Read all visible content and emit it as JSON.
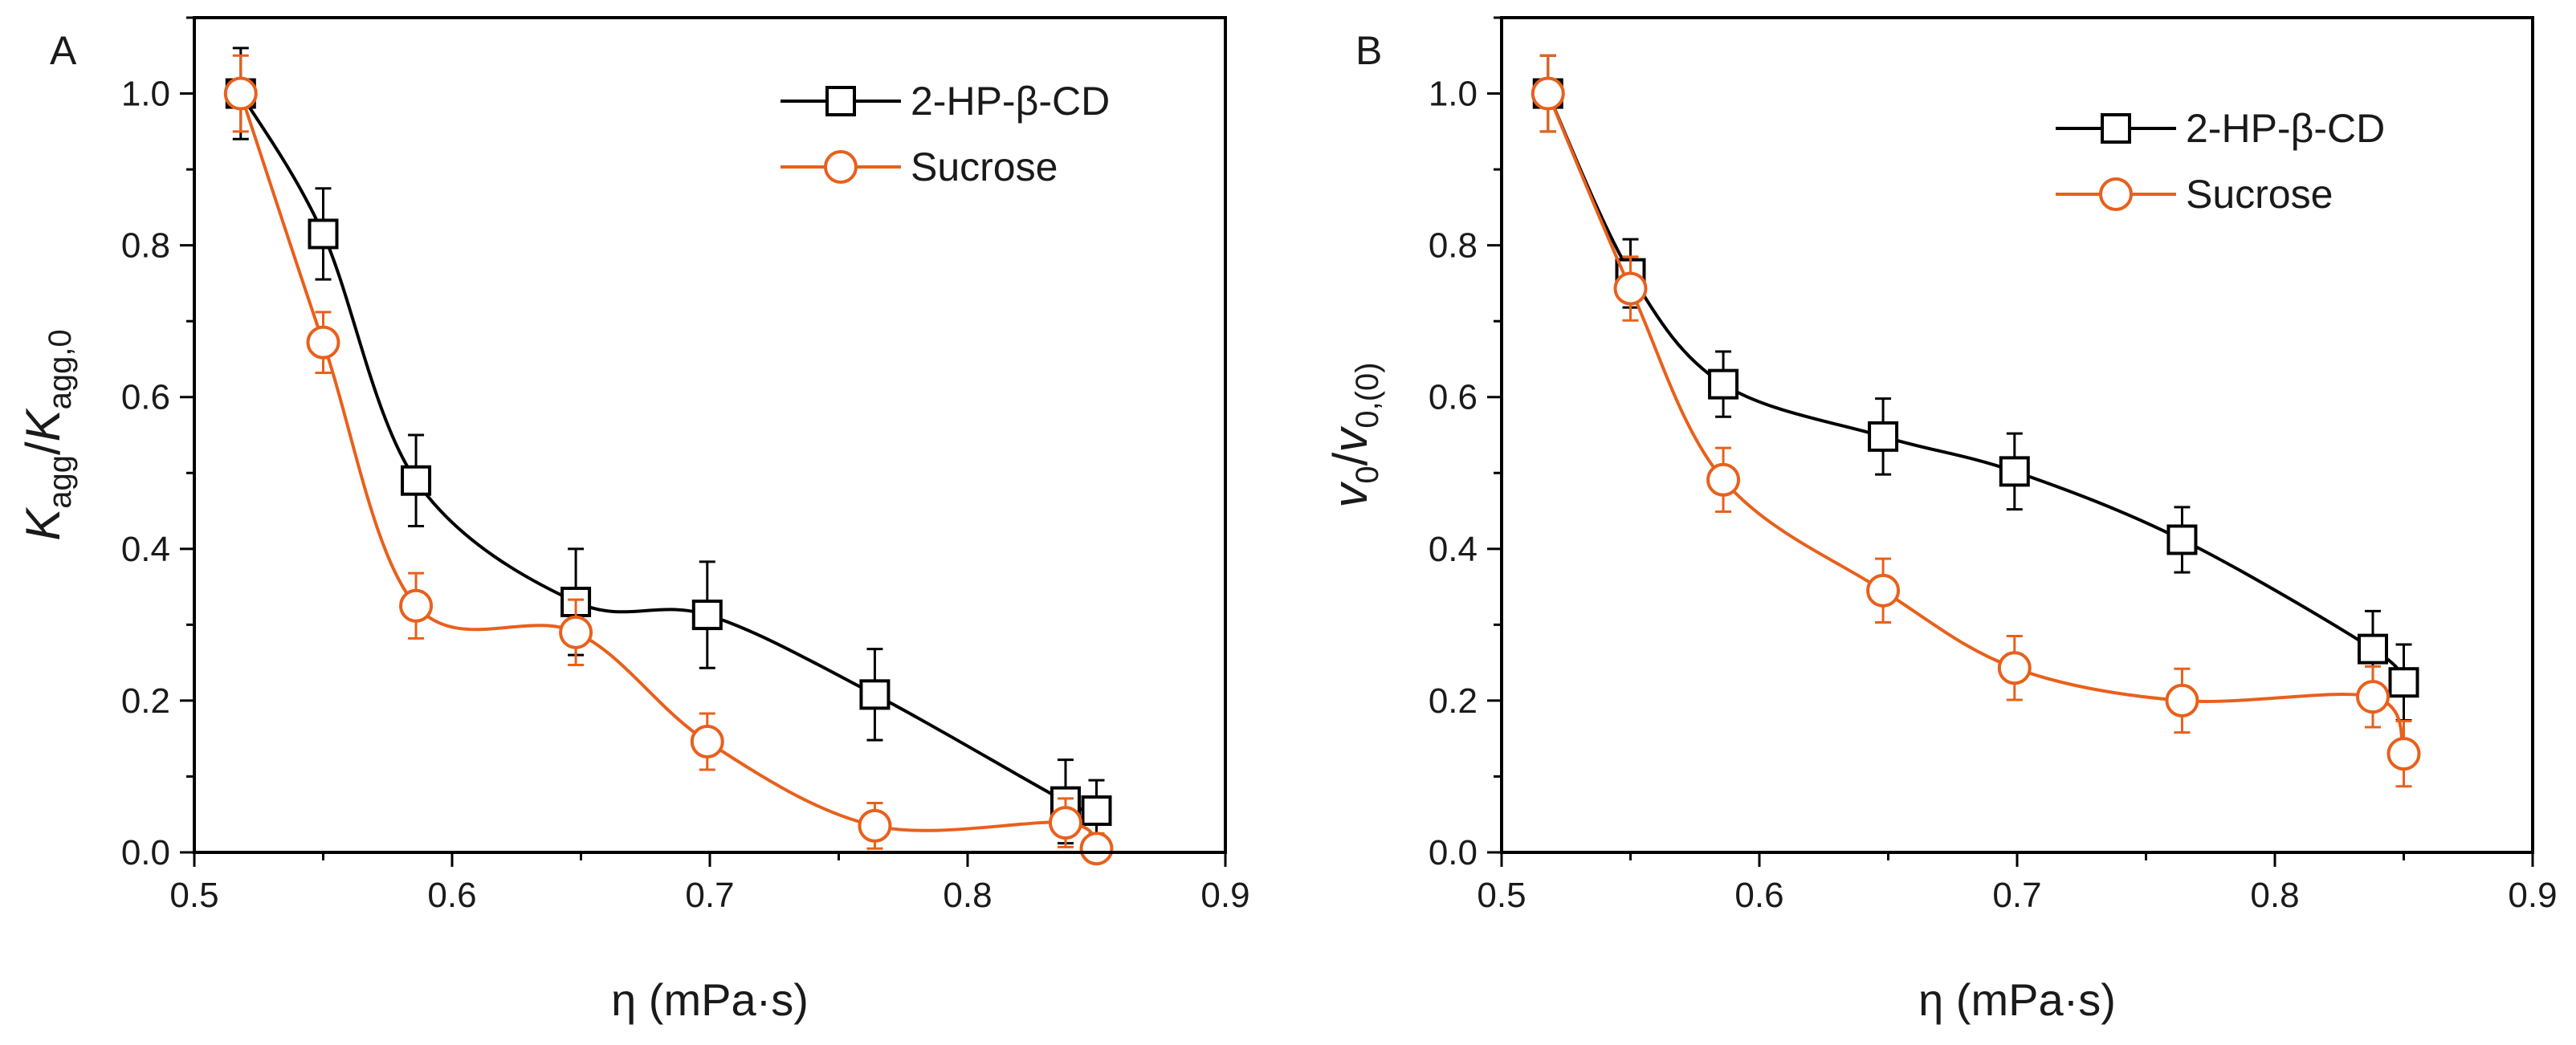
{
  "chart_data": [
    {
      "panel": "A",
      "type": "scatter",
      "title": "",
      "xlabel": "η (mPa·s)",
      "ylabel": {
        "main": "K",
        "sub": "agg",
        "slash": "/",
        "main2": "K",
        "sub2": "agg,0"
      },
      "xlim": [
        0.5,
        0.9
      ],
      "ylim": [
        0.0,
        1.1
      ],
      "xticks": [
        "0.5",
        "0.6",
        "0.7",
        "0.8",
        "0.9"
      ],
      "yticks": [
        "0.0",
        "0.2",
        "0.4",
        "0.6",
        "0.8",
        "1.0"
      ],
      "legend_position": "top-right",
      "series": [
        {
          "name": "2-HP-β-CD",
          "color": "#000000",
          "marker": "square",
          "x": [
            0.518,
            0.55,
            0.586,
            0.648,
            0.699,
            0.764,
            0.838,
            0.85
          ],
          "y": [
            1.0,
            0.815,
            0.49,
            0.33,
            0.313,
            0.208,
            0.067,
            0.055
          ],
          "err": [
            0.06,
            0.06,
            0.06,
            0.07,
            0.07,
            0.06,
            0.055,
            0.04
          ]
        },
        {
          "name": "Sucrose",
          "color": "#e8601c",
          "marker": "circle",
          "x": [
            0.518,
            0.55,
            0.586,
            0.648,
            0.699,
            0.764,
            0.838,
            0.85
          ],
          "y": [
            1.0,
            0.672,
            0.325,
            0.29,
            0.146,
            0.035,
            0.039,
            0.005
          ],
          "err": [
            0.05,
            0.04,
            0.043,
            0.043,
            0.037,
            0.03,
            0.032,
            0.02
          ]
        }
      ]
    },
    {
      "panel": "B",
      "type": "scatter",
      "title": "",
      "xlabel": "η (mPa·s)",
      "ylabel": {
        "main": "v",
        "sub": "0",
        "slash": "/",
        "main2": "v",
        "sub2": "0,(0)"
      },
      "xlim": [
        0.5,
        0.9
      ],
      "ylim": [
        0.0,
        1.1
      ],
      "xticks": [
        "0.5",
        "0.6",
        "0.7",
        "0.8",
        "0.9"
      ],
      "yticks": [
        "0.0",
        "0.2",
        "0.4",
        "0.6",
        "0.8",
        "1.0"
      ],
      "legend_position": "top-right",
      "series": [
        {
          "name": "2-HP-β-CD",
          "color": "#000000",
          "marker": "square",
          "x": [
            0.518,
            0.55,
            0.586,
            0.648,
            0.699,
            0.764,
            0.838,
            0.85
          ],
          "y": [
            1.0,
            0.763,
            0.617,
            0.548,
            0.502,
            0.412,
            0.268,
            0.224
          ],
          "err": [
            0.05,
            0.045,
            0.043,
            0.05,
            0.05,
            0.043,
            0.05,
            0.05
          ]
        },
        {
          "name": "Sucrose",
          "color": "#e8601c",
          "marker": "circle",
          "x": [
            0.518,
            0.55,
            0.586,
            0.648,
            0.699,
            0.764,
            0.838,
            0.85
          ],
          "y": [
            1.0,
            0.743,
            0.491,
            0.345,
            0.243,
            0.2,
            0.205,
            0.13
          ],
          "err": [
            0.05,
            0.042,
            0.042,
            0.042,
            0.042,
            0.042,
            0.04,
            0.043
          ]
        }
      ]
    }
  ]
}
